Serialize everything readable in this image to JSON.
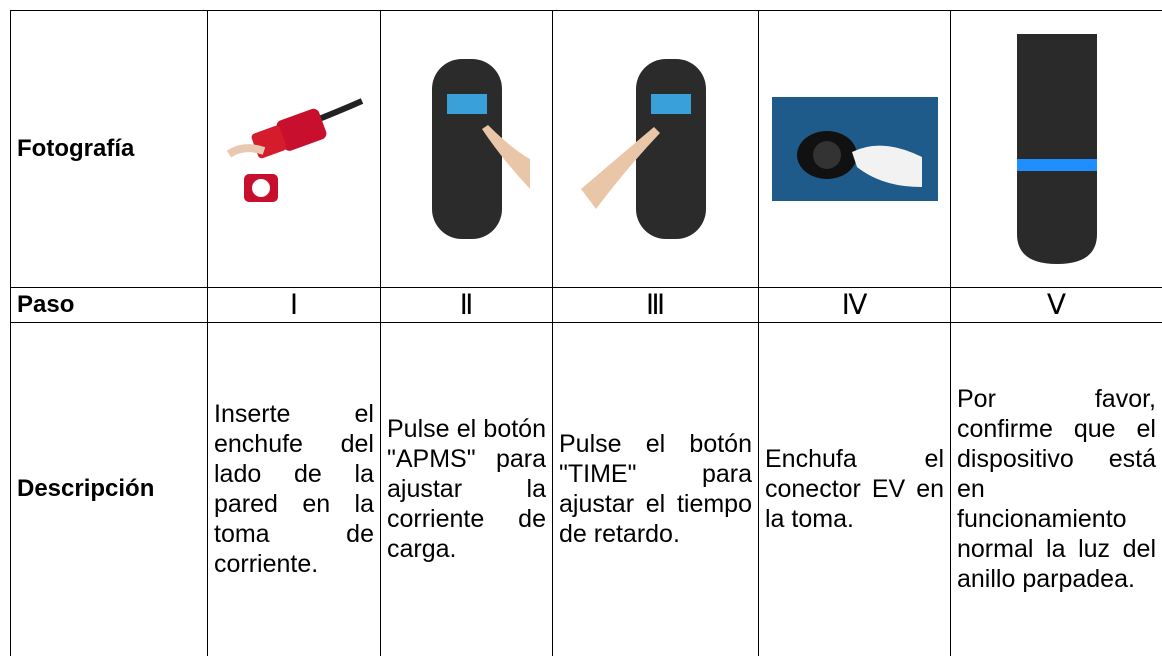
{
  "table": {
    "rows": [
      [
        "Fotografía"
      ],
      [
        "Paso",
        "Ⅰ",
        "Ⅱ",
        "Ⅲ",
        "Ⅳ",
        "Ⅴ"
      ],
      [
        "Descripción",
        "Inserte el enchufe del lado de la pared en la toma de corriente.",
        "Pulse el botón \"APMS\" para ajustar la corriente de carga.",
        "Pulse el botón \"TIME\" para ajustar el tiempo de retardo.",
        "Enchufa el conector EV en la toma.",
        "Por favor, confirme que el dispositivo está en funcionamiento normal la luz del anillo parpadea."
      ]
    ]
  }
}
